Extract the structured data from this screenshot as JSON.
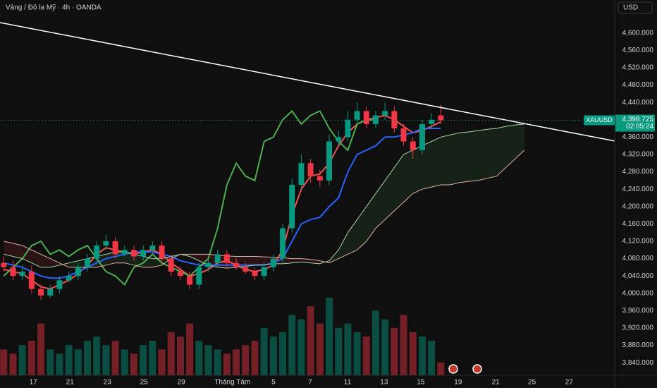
{
  "chart_data": {
    "type": "candlestick",
    "title": "Vàng / Đô la Mỹ · 4h · OANDA",
    "currency": "USD",
    "symbol": "XAUUSD",
    "last_price": {
      "value": 4398.725,
      "label": "4,398.725"
    },
    "countdown": "02:05:24",
    "up_color": "#089981",
    "down_color": "#f23645",
    "open": [
      4070,
      4060,
      4040,
      4050,
      4010,
      3995,
      4010,
      4030,
      4040,
      4060,
      4080,
      4110,
      4120,
      4090,
      4100,
      4085,
      4100,
      4110,
      4080,
      4050,
      4040,
      4020,
      4060,
      4070,
      4090,
      4070,
      4060,
      4050,
      4040,
      4060,
      4080,
      4150,
      4250,
      4300,
      4270,
      4260,
      4350,
      4360,
      4400,
      4420,
      4390,
      4410,
      4420,
      4380,
      4350,
      4330,
      4390,
      4410,
      null,
      null,
      null,
      null,
      null,
      null,
      null,
      null,
      null
    ],
    "high": [
      4085,
      4075,
      4065,
      4065,
      4020,
      4020,
      4040,
      4050,
      4070,
      4090,
      4120,
      4135,
      4130,
      4110,
      4110,
      4110,
      4120,
      4120,
      4090,
      4060,
      4050,
      4070,
      4080,
      4100,
      4100,
      4080,
      4070,
      4060,
      4070,
      4090,
      4160,
      4265,
      4320,
      4310,
      4285,
      4365,
      4375,
      4420,
      4440,
      4430,
      4420,
      4440,
      4430,
      4390,
      4360,
      4400,
      4415,
      4435,
      null,
      null,
      null,
      null,
      null,
      null,
      null,
      null,
      null
    ],
    "low": [
      4050,
      4030,
      4030,
      4000,
      3985,
      3990,
      4000,
      4025,
      4030,
      4050,
      4070,
      4100,
      4080,
      4085,
      4075,
      4075,
      4090,
      4070,
      4040,
      4030,
      4010,
      4010,
      4050,
      4060,
      4060,
      4055,
      4045,
      4030,
      4030,
      4050,
      4070,
      4140,
      4240,
      4255,
      4245,
      4250,
      4340,
      4350,
      4390,
      4380,
      4380,
      4400,
      4370,
      4340,
      4310,
      4320,
      4380,
      4390,
      null,
      null,
      null,
      null,
      null,
      null,
      null,
      null,
      null
    ],
    "close": [
      4060,
      4040,
      4050,
      4010,
      3995,
      4010,
      4030,
      4040,
      4060,
      4080,
      4110,
      4120,
      4090,
      4100,
      4085,
      4100,
      4110,
      4080,
      4050,
      4040,
      4020,
      4060,
      4070,
      4090,
      4070,
      4060,
      4050,
      4040,
      4060,
      4080,
      4150,
      4250,
      4300,
      4270,
      4260,
      4350,
      4360,
      4400,
      4420,
      4390,
      4410,
      4420,
      4380,
      4350,
      4330,
      4390,
      4400,
      4398.725,
      null,
      null,
      null,
      null,
      null,
      null,
      null,
      null,
      null
    ],
    "volume": [
      30,
      25,
      35,
      40,
      60,
      30,
      25,
      35,
      30,
      40,
      45,
      35,
      40,
      30,
      25,
      35,
      40,
      30,
      50,
      45,
      60,
      40,
      35,
      30,
      25,
      30,
      35,
      40,
      55,
      45,
      50,
      70,
      65,
      80,
      60,
      90,
      55,
      60,
      50,
      45,
      75,
      65,
      55,
      70,
      50,
      45,
      40,
      15,
      null,
      null,
      null,
      null,
      null,
      null,
      null,
      null,
      null
    ],
    "series": [
      {
        "color": "#ef5350",
        "values": [
          4055,
          4050,
          4045,
          4030,
          4015,
          4010,
          4020,
          4030,
          4045,
          4065,
          4090,
          4105,
          4100,
          4095,
          4090,
          4095,
          4100,
          4090,
          4070,
          4055,
          4040,
          4045,
          4055,
          4070,
          4075,
          4065,
          4055,
          4050,
          4055,
          4065,
          4100,
          4180,
          4240,
          4270,
          4275,
          4300,
          4340,
          4370,
          4390,
          4400,
          4405,
          4410,
          4400,
          4385,
          4370,
          4375,
          4385,
          4395,
          null,
          null,
          null,
          null,
          null,
          null,
          null,
          null,
          null
        ]
      },
      {
        "color": "#2962ff",
        "values": [
          4070,
          4065,
          4060,
          4050,
          4040,
          4035,
          4035,
          4040,
          4050,
          4060,
          4070,
          4080,
          4085,
          4090,
          4095,
          4095,
          4095,
          4090,
          4085,
          4075,
          4070,
          4065,
          4065,
          4065,
          4065,
          4065,
          4065,
          4065,
          4065,
          4070,
          4080,
          4120,
          4160,
          4170,
          4175,
          4200,
          4220,
          4280,
          4320,
          4330,
          4340,
          4360,
          4360,
          4365,
          4370,
          4380,
          4380,
          4380,
          null,
          null,
          null,
          null,
          null,
          null,
          null,
          null,
          null
        ]
      },
      {
        "color": "#4caf50",
        "values": [
          4040,
          4060,
          4080,
          4110,
          4120,
          4090,
          4100,
          4085,
          4100,
          4110,
          4080,
          4050,
          4040,
          4020,
          4060,
          4070,
          4090,
          4070,
          4060,
          4050,
          4040,
          4060,
          4080,
          4150,
          4250,
          4300,
          4270,
          4260,
          4350,
          4360,
          4400,
          4420,
          4390,
          4410,
          4420,
          4380,
          4350,
          4330,
          4390,
          4400,
          4398.725,
          null,
          null,
          null,
          null,
          null,
          null,
          null,
          null,
          null,
          null,
          null,
          null,
          null,
          null,
          null,
          null
        ]
      },
      {
        "color": "#a5d6a7",
        "values": [
          4090,
          4085,
          4080,
          4070,
          4060,
          4060,
          4065,
          4070,
          4075,
          4080,
          4085,
          4090,
          4095,
          4095,
          4090,
          4085,
          4080,
          4080,
          4085,
          4090,
          4085,
          4075,
          4065,
          4060,
          4058,
          4060,
          4062,
          4065,
          4066,
          4068,
          4068,
          4070,
          4072,
          4070,
          4068,
          4075,
          4100,
          4140,
          4170,
          4200,
          4230,
          4260,
          4290,
          4320,
          4330,
          4340,
          4350,
          4360,
          4365,
          4370,
          4372,
          4375,
          4378,
          4380,
          4385,
          4388,
          4390
        ]
      },
      {
        "color": "#e0b0a0",
        "values": [
          4120,
          4115,
          4110,
          4100,
          4090,
          4080,
          4070,
          4060,
          4060,
          4060,
          4060,
          4065,
          4070,
          4070,
          4065,
          4060,
          4060,
          4065,
          4080,
          4090,
          4090,
          4090,
          4090,
          4088,
          4086,
          4085,
          4085,
          4085,
          4084,
          4083,
          4082,
          4080,
          4080,
          4078,
          4075,
          4070,
          4080,
          4090,
          4100,
          4120,
          4150,
          4170,
          4190,
          4210,
          4230,
          4240,
          4245,
          4250,
          4250,
          4255,
          4258,
          4260,
          4265,
          4270,
          4290,
          4310,
          4330
        ]
      }
    ],
    "trendline": [
      4624,
      4351
    ],
    "ylim": [
      3811,
      4676
    ],
    "yticks": [
      {
        "value": 3840,
        "label": "3,840.000"
      },
      {
        "value": 3880,
        "label": "3,880.000"
      },
      {
        "value": 3920,
        "label": "3,920.000"
      },
      {
        "value": 3960,
        "label": "3,960.000"
      },
      {
        "value": 4000,
        "label": "4,000.000"
      },
      {
        "value": 4040,
        "label": "4,040.000"
      },
      {
        "value": 4080,
        "label": "4,080.000"
      },
      {
        "value": 4120,
        "label": "4,120.000"
      },
      {
        "value": 4160,
        "label": "4,160.000"
      },
      {
        "value": 4200,
        "label": "4,200.000"
      },
      {
        "value": 4240,
        "label": "4,240.000"
      },
      {
        "value": 4280,
        "label": "4,280.000"
      },
      {
        "value": 4320,
        "label": "4,320.000"
      },
      {
        "value": 4360,
        "label": "4,360.000"
      },
      {
        "value": 4440,
        "label": "4,440.000"
      },
      {
        "value": 4480,
        "label": "4,480.000"
      },
      {
        "value": 4520,
        "label": "4,520.000"
      },
      {
        "value": 4560,
        "label": "4,560.000"
      },
      {
        "value": 4600,
        "label": "4,600.000"
      }
    ],
    "xlim": [
      -0.4,
      65.7
    ],
    "xticks": [
      {
        "value": 3.18,
        "label": "17"
      },
      {
        "value": 7.12,
        "label": "21"
      },
      {
        "value": 11.14,
        "label": "23"
      },
      {
        "value": 15.08,
        "label": "25"
      },
      {
        "value": 19.09,
        "label": "29"
      },
      {
        "value": 24.6,
        "label": "Tháng Tám"
      },
      {
        "value": 29.0,
        "label": "5"
      },
      {
        "value": 32.95,
        "label": "7"
      },
      {
        "value": 36.97,
        "label": "11"
      },
      {
        "value": 40.9,
        "label": "13"
      },
      {
        "value": 44.85,
        "label": "15"
      },
      {
        "value": 48.86,
        "label": "19"
      },
      {
        "value": 52.9,
        "label": "21"
      },
      {
        "value": 56.8,
        "label": "25"
      },
      {
        "value": 60.8,
        "label": "27"
      }
    ]
  }
}
